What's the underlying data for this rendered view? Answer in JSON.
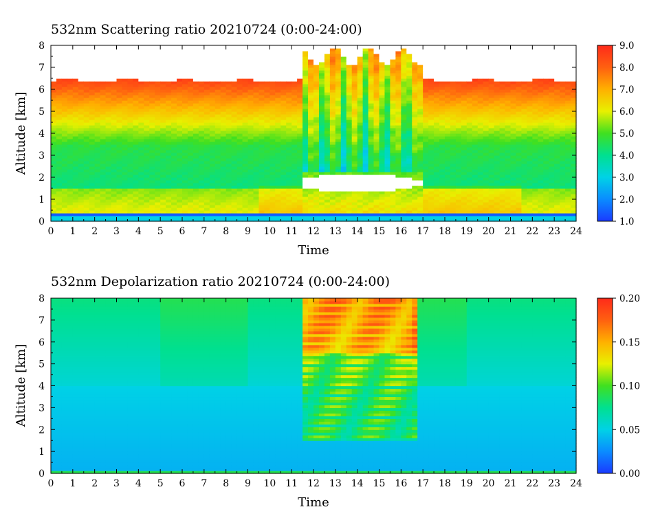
{
  "chart_data": [
    {
      "type": "heatmap",
      "title": "532nm Scattering ratio  20210724 (0:00-24:00)",
      "xlabel": "Time",
      "ylabel": "Altitude [km]",
      "xlim": [
        0,
        24
      ],
      "ylim": [
        0,
        8
      ],
      "x_ticks": [
        "0",
        "1",
        "2",
        "3",
        "4",
        "5",
        "6",
        "7",
        "8",
        "9",
        "10",
        "11",
        "12",
        "13",
        "14",
        "15",
        "16",
        "17",
        "18",
        "19",
        "20",
        "21",
        "22",
        "23",
        "24"
      ],
      "y_ticks": [
        "0",
        "1",
        "2",
        "3",
        "4",
        "5",
        "6",
        "7",
        "8"
      ],
      "colorbar": {
        "range": [
          1.0,
          9.0
        ],
        "ticks": [
          "1.0",
          "2.0",
          "3.0",
          "4.0",
          "5.0",
          "6.0",
          "7.0",
          "8.0",
          "9.0"
        ]
      },
      "features": {
        "signal_top_km": 6.4,
        "cloud_time_hours": [
          11.5,
          17.0
        ],
        "cloud_base_km": [
          1.3,
          2.2
        ],
        "saturated_color": "#ffffff"
      }
    },
    {
      "type": "heatmap",
      "title": "532nm Depolarization ratio  20210724 (0:00-24:00)",
      "xlabel": "Time",
      "ylabel": "Altitude [km]",
      "xlim": [
        0,
        24
      ],
      "ylim": [
        0,
        8
      ],
      "x_ticks": [
        "0",
        "1",
        "2",
        "3",
        "4",
        "5",
        "6",
        "7",
        "8",
        "9",
        "10",
        "11",
        "12",
        "13",
        "14",
        "15",
        "16",
        "17",
        "18",
        "19",
        "20",
        "21",
        "22",
        "23",
        "24"
      ],
      "y_ticks": [
        "0",
        "1",
        "2",
        "3",
        "4",
        "5",
        "6",
        "7",
        "8"
      ],
      "colorbar": {
        "range": [
          0.0,
          0.2
        ],
        "ticks": [
          "0.00",
          "0.05",
          "0.10",
          "0.15",
          "0.20"
        ]
      },
      "features": {
        "high_depol_time_hours": [
          11.5,
          16.5
        ],
        "high_depol_alt_km": [
          4.0,
          8.0
        ]
      }
    }
  ],
  "colormap": [
    "#1a3aff",
    "#0a8cff",
    "#00d2e6",
    "#00e090",
    "#40e020",
    "#e8f000",
    "#ffb000",
    "#ff6010",
    "#ff2a1a"
  ]
}
